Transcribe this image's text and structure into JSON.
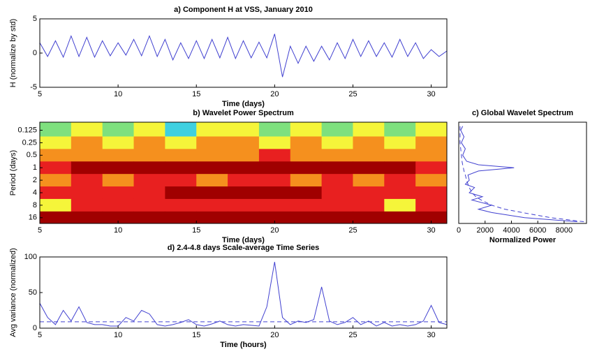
{
  "chart_data": [
    {
      "type": "line",
      "title": "a) Component H at VSS, January 2010",
      "ylabel": "H (normalize by std)",
      "xlabel": "Time (days)",
      "xlim": [
        5,
        31
      ],
      "ylim": [
        -5,
        5
      ],
      "xticks": [
        5,
        10,
        15,
        20,
        25,
        30
      ],
      "yticks": [
        -5,
        0,
        5
      ],
      "x": [
        5,
        5.5,
        6,
        6.5,
        7,
        7.5,
        8,
        8.5,
        9,
        9.5,
        10,
        10.5,
        11,
        11.5,
        12,
        12.5,
        13,
        13.5,
        14,
        14.5,
        15,
        15.5,
        16,
        16.5,
        17,
        17.5,
        18,
        18.5,
        19,
        19.5,
        20,
        20.5,
        21,
        21.5,
        22,
        22.5,
        23,
        23.5,
        24,
        24.5,
        25,
        25.5,
        26,
        26.5,
        27,
        27.5,
        28,
        28.5,
        29,
        29.5,
        30,
        30.5,
        31
      ],
      "series": [
        {
          "color": "#4040d0",
          "values": [
            1.5,
            -0.5,
            1.8,
            -0.6,
            2.5,
            -0.5,
            2.3,
            -0.6,
            1.8,
            -0.4,
            1.5,
            -0.3,
            2.0,
            -0.4,
            2.5,
            -0.5,
            2.0,
            -1.0,
            1.5,
            -0.8,
            1.8,
            -0.8,
            2.0,
            -0.7,
            2.3,
            -0.8,
            1.8,
            -0.7,
            1.6,
            -0.7,
            2.8,
            -3.5,
            1.0,
            -1.5,
            1.0,
            -1.2,
            1.0,
            -1.0,
            1.5,
            -0.8,
            2.0,
            -0.5,
            1.8,
            -0.5,
            1.5,
            -0.6,
            2.0,
            -0.5,
            1.5,
            -0.8,
            0.5,
            -0.5,
            0.3
          ]
        }
      ]
    },
    {
      "type": "heatmap",
      "title": "b) Wavelet Power Spectrum",
      "ylabel": "Period (days)",
      "xlabel": "Time (days)",
      "xlim": [
        5,
        31
      ],
      "ylim": [
        0.08,
        22
      ],
      "log_y": true,
      "xticks": [
        5,
        10,
        15,
        20,
        25,
        30
      ],
      "yticks": [
        0.125,
        0.25,
        0.5,
        1,
        2,
        4,
        8,
        16
      ],
      "x": [
        6,
        8,
        10,
        12,
        14,
        16,
        18,
        20,
        22,
        24,
        26,
        28,
        30
      ],
      "y": [
        0.125,
        0.25,
        0.5,
        1,
        2,
        4,
        8,
        16
      ],
      "colors": [
        "#1e3cff",
        "#3fd0e0",
        "#7ee07e",
        "#f5f53a",
        "#f5901e",
        "#e82020",
        "#a00000"
      ],
      "z": [
        [
          2,
          3,
          2,
          3,
          1,
          3,
          3,
          2,
          3,
          2,
          3,
          2,
          3
        ],
        [
          3,
          4,
          3,
          4,
          3,
          4,
          4,
          3,
          4,
          3,
          4,
          3,
          4
        ],
        [
          4,
          4,
          4,
          4,
          4,
          4,
          4,
          5,
          4,
          4,
          4,
          4,
          4
        ],
        [
          5,
          6,
          6,
          6,
          6,
          6,
          6,
          6,
          6,
          6,
          6,
          6,
          5
        ],
        [
          4,
          5,
          4,
          5,
          5,
          4,
          5,
          5,
          4,
          5,
          4,
          5,
          4
        ],
        [
          5,
          5,
          5,
          5,
          6,
          6,
          6,
          6,
          6,
          5,
          5,
          5,
          5
        ],
        [
          3,
          5,
          5,
          5,
          5,
          5,
          5,
          5,
          5,
          5,
          5,
          3,
          5
        ],
        [
          6,
          6,
          6,
          6,
          6,
          6,
          6,
          6,
          6,
          6,
          6,
          6,
          6
        ]
      ]
    },
    {
      "type": "profile",
      "title": "c) Global Wavelet Spectrum",
      "xlabel": "Normalized Power",
      "xlim": [
        0,
        9700
      ],
      "ylim": [
        0.08,
        22
      ],
      "log_y": true,
      "xticks": [
        0,
        2000,
        4000,
        6000,
        8000
      ],
      "y": [
        0.1,
        0.125,
        0.18,
        0.25,
        0.35,
        0.5,
        0.7,
        0.85,
        1,
        1.2,
        1.5,
        2,
        2.5,
        3,
        4,
        5,
        6,
        8,
        10,
        12,
        16,
        20
      ],
      "series": [
        {
          "color": "#4040d0",
          "dash": false,
          "values": [
            300,
            150,
            400,
            200,
            500,
            300,
            600,
            1500,
            4200,
            1500,
            700,
            800,
            500,
            1200,
            800,
            1800,
            1000,
            2500,
            1500,
            2500,
            5000,
            9000
          ]
        },
        {
          "color": "#4040d0",
          "dash": true,
          "values": [
            100,
            100,
            100,
            100,
            150,
            200,
            250,
            300,
            350,
            400,
            500,
            600,
            700,
            800,
            1000,
            1300,
            1700,
            2500,
            3500,
            4800,
            7000,
            9500
          ]
        }
      ]
    },
    {
      "type": "line",
      "title": "d) 2.4-4.8 days Scale-average Time Series",
      "ylabel": "Avg variance (normalized)",
      "xlabel": "Time (hours)",
      "xlim": [
        5,
        31
      ],
      "ylim": [
        0,
        100
      ],
      "xticks": [
        5,
        10,
        15,
        20,
        25,
        30
      ],
      "yticks": [
        0,
        50,
        100
      ],
      "threshold": 9,
      "x": [
        5,
        5.5,
        6,
        6.5,
        7,
        7.5,
        8,
        8.5,
        9,
        9.5,
        10,
        10.5,
        11,
        11.5,
        12,
        12.5,
        13,
        13.5,
        14,
        14.5,
        15,
        15.5,
        16,
        16.5,
        17,
        17.5,
        18,
        18.5,
        19,
        19.5,
        20,
        20.5,
        21,
        21.5,
        22,
        22.5,
        23,
        23.5,
        24,
        24.5,
        25,
        25.5,
        26,
        26.5,
        27,
        27.5,
        28,
        28.5,
        29,
        29.5,
        30,
        30.5,
        31
      ],
      "series": [
        {
          "color": "#4040d0",
          "values": [
            35,
            15,
            5,
            25,
            10,
            30,
            8,
            5,
            5,
            3,
            3,
            15,
            10,
            25,
            20,
            5,
            3,
            5,
            8,
            12,
            5,
            3,
            6,
            10,
            5,
            3,
            5,
            4,
            3,
            30,
            93,
            15,
            5,
            10,
            8,
            12,
            58,
            10,
            5,
            8,
            15,
            5,
            10,
            3,
            8,
            3,
            5,
            3,
            5,
            10,
            32,
            8,
            5
          ]
        }
      ]
    }
  ]
}
